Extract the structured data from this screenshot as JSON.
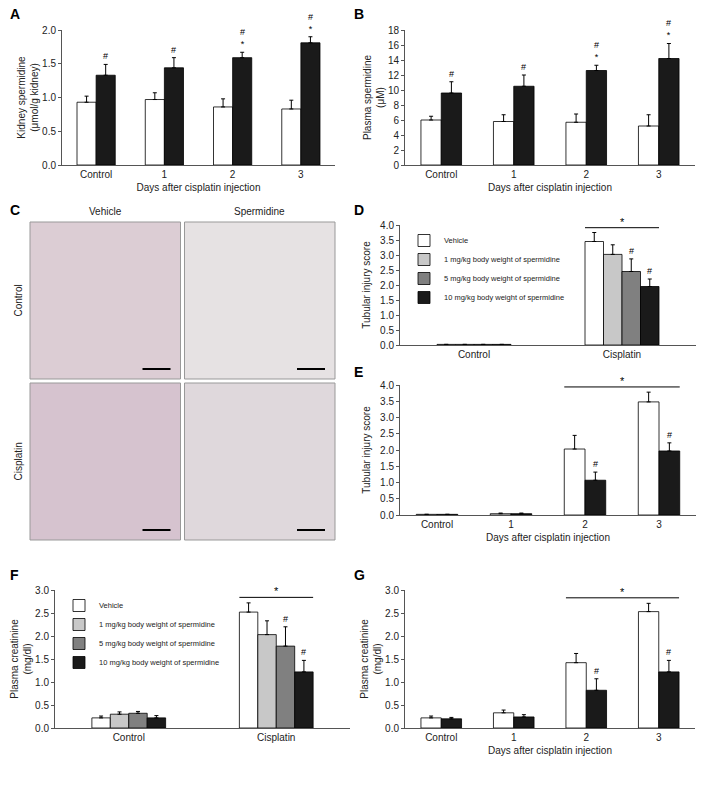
{
  "chart_data": [
    {
      "label": "A",
      "type": "bar",
      "categories": [
        "Control",
        "1",
        "2",
        "3"
      ],
      "xlabel": "Days after cisplatin injection",
      "ylabel": "Kidney spermidine (μmol/g kidney)",
      "ylim": [
        0,
        2.0
      ],
      "yticks": [
        {
          "value": 0,
          "label": "0.0"
        },
        0.5,
        {
          "value": 1,
          "label": "1.0"
        },
        1.5,
        {
          "value": 2,
          "label": "2.0"
        }
      ],
      "series": [
        {
          "color": "#ffffff",
          "values": [
            0.93,
            0.97,
            0.86,
            0.83
          ],
          "errors": [
            0.09,
            0.1,
            0.12,
            0.13
          ],
          "marks": [
            [],
            [],
            [],
            []
          ]
        },
        {
          "color": "#1a1a1a",
          "values": [
            1.33,
            1.44,
            1.59,
            1.81
          ],
          "errors": [
            0.16,
            0.15,
            0.08,
            0.09
          ],
          "marks": [
            [
              "#"
            ],
            [
              "#"
            ],
            [
              "#",
              "*"
            ],
            [
              "#",
              "*"
            ]
          ]
        }
      ]
    },
    {
      "label": "B",
      "type": "bar",
      "categories": [
        "Control",
        "1",
        "2",
        "3"
      ],
      "xlabel": "Days after cisplatin injection",
      "ylabel": "Plasma spermidine (μM)",
      "ylim": [
        0,
        18
      ],
      "yticks": [
        0,
        2,
        4,
        6,
        8,
        10,
        12,
        14,
        16,
        18
      ],
      "series": [
        {
          "color": "#ffffff",
          "values": [
            6.0,
            5.8,
            5.7,
            5.2
          ],
          "errors": [
            0.5,
            0.9,
            1.1,
            1.5
          ],
          "marks": [
            [],
            [],
            [],
            []
          ]
        },
        {
          "color": "#1a1a1a",
          "values": [
            9.6,
            10.5,
            12.6,
            14.2
          ],
          "errors": [
            1.5,
            1.5,
            0.7,
            2.0
          ],
          "marks": [
            [
              "#"
            ],
            [
              "#"
            ],
            [
              "#",
              "*"
            ],
            [
              "#",
              "*"
            ]
          ]
        }
      ]
    },
    {
      "label": "C",
      "type": "image",
      "columns": [
        "Vehicle",
        "Spermidine"
      ],
      "rows": [
        "Control",
        "Cisplatin"
      ]
    },
    {
      "label": "D",
      "type": "bar",
      "categories": [
        "Control",
        "Cisplatin"
      ],
      "ylabel": "Tubular injury score",
      "ylim": [
        0,
        4.0
      ],
      "yticks": [
        {
          "value": 0,
          "label": "0.0"
        },
        0.5,
        {
          "value": 1,
          "label": "1.0"
        },
        1.5,
        {
          "value": 2,
          "label": "2.0"
        },
        2.5,
        {
          "value": 3,
          "label": "3.0"
        },
        3.5,
        {
          "value": 4,
          "label": "4.0"
        }
      ],
      "legend": "upper left",
      "series": [
        {
          "name": "Vehicle",
          "color": "#ffffff",
          "values": [
            0.02,
            3.45
          ],
          "errors": [
            0,
            0.3
          ],
          "marks": [
            [],
            []
          ]
        },
        {
          "name": "1 mg/kg body weight of spermidine",
          "color": "#c8c8c8",
          "values": [
            0.02,
            3.02
          ],
          "errors": [
            0,
            0.32
          ],
          "marks": [
            [],
            []
          ]
        },
        {
          "name": "5 mg/kg body weight of spermidine",
          "color": "#808080",
          "values": [
            0.02,
            2.45
          ],
          "errors": [
            0,
            0.42
          ],
          "marks": [
            [],
            [
              "#"
            ]
          ]
        },
        {
          "name": "10 mg/kg body weight of spermidine",
          "color": "#1a1a1a",
          "values": [
            0.02,
            1.95
          ],
          "errors": [
            0,
            0.25
          ],
          "marks": [
            [],
            [
              "#"
            ]
          ]
        }
      ],
      "brackets": [
        {
          "from": "Cisplatin",
          "to": "Cisplatin",
          "text": "*"
        }
      ]
    },
    {
      "label": "E",
      "type": "bar",
      "categories": [
        "Control",
        "1",
        "2",
        "3"
      ],
      "xlabel": "Days after cisplatin injection",
      "ylabel": "Tubular injury score",
      "ylim": [
        0,
        4.0
      ],
      "yticks": [
        {
          "value": 0,
          "label": "0.0"
        },
        0.5,
        {
          "value": 1,
          "label": "1.0"
        },
        1.5,
        {
          "value": 2,
          "label": "2.0"
        },
        2.5,
        {
          "value": 3,
          "label": "3.0"
        },
        3.5,
        {
          "value": 4,
          "label": "4.0"
        }
      ],
      "series": [
        {
          "color": "#ffffff",
          "values": [
            0.02,
            0.04,
            2.03,
            3.48
          ],
          "errors": [
            0,
            0.02,
            0.42,
            0.3
          ],
          "marks": [
            [],
            [],
            [],
            []
          ]
        },
        {
          "color": "#1a1a1a",
          "values": [
            0.02,
            0.04,
            1.07,
            1.97
          ],
          "errors": [
            0,
            0.02,
            0.25,
            0.25
          ],
          "marks": [
            [],
            [],
            [
              "#"
            ],
            [
              "#"
            ]
          ]
        }
      ],
      "brackets": [
        {
          "from": "2",
          "to": "3",
          "text": "*"
        }
      ]
    },
    {
      "label": "F",
      "type": "bar",
      "categories": [
        "Control",
        "Cisplatin"
      ],
      "ylabel": "Plasma creatinine (mg/dl)",
      "ylim": [
        0,
        3.0
      ],
      "yticks": [
        {
          "value": 0,
          "label": "0.0"
        },
        0.5,
        {
          "value": 1,
          "label": "1.0"
        },
        1.5,
        {
          "value": 2,
          "label": "2.0"
        },
        2.5,
        {
          "value": 3,
          "label": "3.0"
        }
      ],
      "legend": "upper left",
      "series": [
        {
          "name": "Vehicle",
          "color": "#ffffff",
          "values": [
            0.22,
            2.52
          ],
          "errors": [
            0.04,
            0.2
          ],
          "marks": [
            [],
            []
          ]
        },
        {
          "name": "1 mg/kg body weight of spermidine",
          "color": "#c8c8c8",
          "values": [
            0.3,
            2.03
          ],
          "errors": [
            0.05,
            0.3
          ],
          "marks": [
            [],
            []
          ]
        },
        {
          "name": "5 mg/kg body weight of spermidine",
          "color": "#808080",
          "values": [
            0.32,
            1.78
          ],
          "errors": [
            0.04,
            0.42
          ],
          "marks": [
            [],
            [
              "#"
            ]
          ]
        },
        {
          "name": "10 mg/kg body weight of spermidine",
          "color": "#1a1a1a",
          "values": [
            0.22,
            1.22
          ],
          "errors": [
            0.05,
            0.25
          ],
          "marks": [
            [],
            [
              "#"
            ]
          ]
        }
      ],
      "brackets": [
        {
          "from": "Cisplatin",
          "to": "Cisplatin",
          "text": "*"
        }
      ]
    },
    {
      "label": "G",
      "type": "bar",
      "categories": [
        "Control",
        "1",
        "2",
        "3"
      ],
      "xlabel": "Days after cisplatin injection",
      "ylabel": "Plasma creatinine (mg/dl)",
      "ylim": [
        0,
        3.0
      ],
      "yticks": [
        {
          "value": 0,
          "label": "0.0"
        },
        0.5,
        {
          "value": 1,
          "label": "1.0"
        },
        1.5,
        {
          "value": 2,
          "label": "2.0"
        },
        2.5,
        {
          "value": 3,
          "label": "3.0"
        }
      ],
      "series": [
        {
          "color": "#ffffff",
          "values": [
            0.22,
            0.33,
            1.42,
            2.53
          ],
          "errors": [
            0.04,
            0.06,
            0.2,
            0.18
          ],
          "marks": [
            [],
            [],
            [],
            []
          ]
        },
        {
          "color": "#1a1a1a",
          "values": [
            0.2,
            0.24,
            0.82,
            1.22
          ],
          "errors": [
            0.03,
            0.05,
            0.25,
            0.25
          ],
          "marks": [
            [],
            [],
            [
              "#"
            ],
            [
              "#"
            ]
          ]
        }
      ],
      "brackets": [
        {
          "from": "2",
          "to": "3",
          "text": "*"
        }
      ]
    }
  ]
}
